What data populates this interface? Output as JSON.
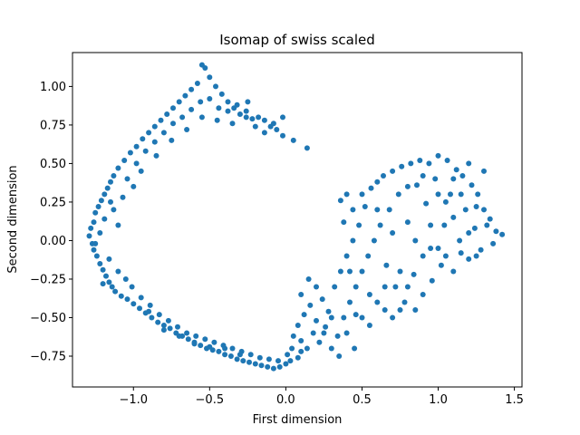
{
  "chart_data": {
    "type": "scatter",
    "title": "Isomap of swiss scaled",
    "xlabel": "First dimension",
    "ylabel": "Second dimension",
    "xlim": [
      -1.4,
      1.55
    ],
    "ylim": [
      -0.95,
      1.22
    ],
    "xticks": [
      -1.0,
      -0.5,
      0.0,
      0.5,
      1.0,
      1.5
    ],
    "xtick_labels": [
      "−1.0",
      "−0.5",
      "0.0",
      "0.5",
      "1.0",
      "1.5"
    ],
    "yticks": [
      -0.75,
      -0.5,
      -0.25,
      0.0,
      0.25,
      0.5,
      0.75,
      1.0
    ],
    "ytick_labels": [
      "−0.75",
      "−0.50",
      "−0.25",
      "0.00",
      "0.25",
      "0.50",
      "0.75",
      "1.00"
    ],
    "grid": false,
    "marker_color": "#1f77b4",
    "series": [
      {
        "points": [
          [
            -1.29,
            0.03
          ],
          [
            -1.28,
            0.08
          ],
          [
            -1.27,
            -0.02
          ],
          [
            -1.26,
            0.12
          ],
          [
            -1.26,
            -0.06
          ],
          [
            -1.25,
            0.18
          ],
          [
            -1.24,
            -0.1
          ],
          [
            -1.23,
            0.22
          ],
          [
            -1.22,
            -0.15
          ],
          [
            -1.21,
            0.26
          ],
          [
            -1.2,
            -0.19
          ],
          [
            -1.19,
            0.3
          ],
          [
            -1.18,
            -0.23
          ],
          [
            -1.17,
            0.34
          ],
          [
            -1.16,
            -0.27
          ],
          [
            -1.15,
            0.38
          ],
          [
            -1.14,
            -0.3
          ],
          [
            -1.13,
            0.42
          ],
          [
            -1.12,
            -0.33
          ],
          [
            -1.1,
            0.47
          ],
          [
            -1.08,
            -0.36
          ],
          [
            -1.06,
            0.52
          ],
          [
            -1.04,
            -0.38
          ],
          [
            -1.02,
            0.57
          ],
          [
            -1.0,
            -0.41
          ],
          [
            -0.98,
            0.61
          ],
          [
            -0.96,
            -0.44
          ],
          [
            -0.94,
            0.66
          ],
          [
            -0.92,
            -0.47
          ],
          [
            -0.9,
            0.7
          ],
          [
            -0.88,
            -0.5
          ],
          [
            -0.86,
            0.74
          ],
          [
            -0.84,
            -0.53
          ],
          [
            -0.82,
            0.78
          ],
          [
            -0.8,
            -0.55
          ],
          [
            -0.78,
            0.82
          ],
          [
            -0.76,
            -0.57
          ],
          [
            -0.74,
            0.86
          ],
          [
            -0.72,
            -0.6
          ],
          [
            -0.7,
            0.9
          ],
          [
            -0.68,
            -0.62
          ],
          [
            -0.66,
            0.94
          ],
          [
            -0.64,
            -0.64
          ],
          [
            -0.62,
            0.98
          ],
          [
            -0.6,
            -0.66
          ],
          [
            -0.58,
            1.02
          ],
          [
            -0.56,
            -0.68
          ],
          [
            -0.55,
            1.14
          ],
          [
            -0.53,
            1.12
          ],
          [
            -0.52,
            -0.7
          ],
          [
            -0.5,
            1.06
          ],
          [
            -0.48,
            -0.71
          ],
          [
            -0.46,
            1.0
          ],
          [
            -0.44,
            -0.72
          ],
          [
            -0.42,
            0.95
          ],
          [
            -0.4,
            -0.74
          ],
          [
            -0.38,
            0.9
          ],
          [
            -0.36,
            -0.75
          ],
          [
            -0.34,
            0.86
          ],
          [
            -0.32,
            -0.77
          ],
          [
            -0.3,
            0.82
          ],
          [
            -0.28,
            -0.78
          ],
          [
            -0.26,
            0.8
          ],
          [
            -0.24,
            -0.79
          ],
          [
            -0.22,
            0.79
          ],
          [
            -0.2,
            -0.8
          ],
          [
            -0.18,
            0.8
          ],
          [
            -0.16,
            -0.81
          ],
          [
            -0.14,
            0.78
          ],
          [
            -0.12,
            -0.82
          ],
          [
            -0.1,
            0.74
          ],
          [
            -0.08,
            -0.83
          ],
          [
            -0.06,
            0.72
          ],
          [
            -0.04,
            -0.82
          ],
          [
            -0.02,
            0.68
          ],
          [
            0.0,
            -0.8
          ],
          [
            0.03,
            -0.78
          ],
          [
            0.05,
            0.65
          ],
          [
            0.08,
            -0.76
          ],
          [
            0.1,
            -0.72
          ],
          [
            0.14,
            0.6
          ],
          [
            -1.25,
            -0.02
          ],
          [
            -1.22,
            0.05
          ],
          [
            -1.19,
            0.14
          ],
          [
            -1.16,
            -0.12
          ],
          [
            -1.13,
            0.2
          ],
          [
            -1.1,
            -0.2
          ],
          [
            -1.07,
            0.28
          ],
          [
            -1.04,
            0.4
          ],
          [
            -1.01,
            -0.3
          ],
          [
            -0.98,
            0.5
          ],
          [
            -0.95,
            -0.37
          ],
          [
            -0.92,
            0.58
          ],
          [
            -0.89,
            -0.42
          ],
          [
            -0.86,
            0.64
          ],
          [
            -0.83,
            -0.48
          ],
          [
            -0.8,
            0.7
          ],
          [
            -0.77,
            -0.52
          ],
          [
            -0.74,
            0.76
          ],
          [
            -0.71,
            -0.56
          ],
          [
            -0.68,
            0.8
          ],
          [
            -0.65,
            -0.6
          ],
          [
            -0.62,
            0.85
          ],
          [
            -0.59,
            -0.62
          ],
          [
            -0.56,
            0.9
          ],
          [
            -0.53,
            -0.64
          ],
          [
            -0.5,
            0.92
          ],
          [
            -0.47,
            -0.66
          ],
          [
            -0.44,
            0.86
          ],
          [
            -0.41,
            -0.68
          ],
          [
            -0.38,
            0.84
          ],
          [
            -0.35,
            -0.7
          ],
          [
            -0.32,
            0.88
          ],
          [
            -0.29,
            -0.72
          ],
          [
            -0.26,
            0.84
          ],
          [
            -0.23,
            -0.74
          ],
          [
            -0.2,
            0.74
          ],
          [
            -0.17,
            -0.76
          ],
          [
            -0.14,
            0.7
          ],
          [
            -0.11,
            -0.77
          ],
          [
            -0.08,
            0.76
          ],
          [
            -0.05,
            -0.78
          ],
          [
            -0.02,
            0.8
          ],
          [
            0.01,
            -0.74
          ],
          [
            0.04,
            -0.7
          ],
          [
            -1.2,
            -0.28
          ],
          [
            -1.15,
            0.25
          ],
          [
            -1.1,
            0.1
          ],
          [
            -1.05,
            -0.25
          ],
          [
            -1.0,
            0.35
          ],
          [
            -0.95,
            0.45
          ],
          [
            -0.9,
            -0.46
          ],
          [
            -0.85,
            0.55
          ],
          [
            -0.8,
            -0.58
          ],
          [
            -0.75,
            0.65
          ],
          [
            -0.7,
            -0.62
          ],
          [
            -0.65,
            0.72
          ],
          [
            -0.6,
            -0.67
          ],
          [
            -0.55,
            0.8
          ],
          [
            -0.5,
            -0.69
          ],
          [
            -0.45,
            0.78
          ],
          [
            -0.4,
            -0.7
          ],
          [
            -0.35,
            0.76
          ],
          [
            -0.3,
            -0.74
          ],
          [
            -0.25,
            0.9
          ],
          [
            0.05,
            -0.62
          ],
          [
            0.08,
            -0.55
          ],
          [
            0.1,
            -0.65
          ],
          [
            0.12,
            -0.48
          ],
          [
            0.14,
            -0.7
          ],
          [
            0.16,
            -0.42
          ],
          [
            0.18,
            -0.6
          ],
          [
            0.2,
            -0.52
          ],
          [
            0.22,
            -0.66
          ],
          [
            0.24,
            -0.38
          ],
          [
            0.26,
            -0.56
          ],
          [
            0.28,
            -0.46
          ],
          [
            0.3,
            -0.7
          ],
          [
            0.32,
            -0.3
          ],
          [
            0.34,
            -0.62
          ],
          [
            0.36,
            -0.2
          ],
          [
            0.38,
            -0.5
          ],
          [
            0.4,
            -0.1
          ],
          [
            0.42,
            -0.4
          ],
          [
            0.44,
            0.0
          ],
          [
            0.46,
            -0.3
          ],
          [
            0.48,
            0.1
          ],
          [
            0.5,
            -0.2
          ],
          [
            0.52,
            0.22
          ],
          [
            0.54,
            -0.1
          ],
          [
            0.56,
            0.34
          ],
          [
            0.58,
            0.0
          ],
          [
            0.6,
            0.38
          ],
          [
            0.62,
            0.1
          ],
          [
            0.64,
            0.42
          ],
          [
            0.66,
            -0.16
          ],
          [
            0.68,
            0.2
          ],
          [
            0.7,
            0.45
          ],
          [
            0.72,
            -0.3
          ],
          [
            0.74,
            0.3
          ],
          [
            0.76,
            0.48
          ],
          [
            0.78,
            -0.4
          ],
          [
            0.8,
            0.12
          ],
          [
            0.82,
            0.5
          ],
          [
            0.84,
            -0.22
          ],
          [
            0.86,
            0.36
          ],
          [
            0.88,
            0.52
          ],
          [
            0.9,
            -0.1
          ],
          [
            0.92,
            0.24
          ],
          [
            0.94,
            0.5
          ],
          [
            0.96,
            -0.26
          ],
          [
            0.98,
            0.4
          ],
          [
            1.0,
            0.55
          ],
          [
            1.02,
            -0.16
          ],
          [
            1.04,
            0.1
          ],
          [
            1.06,
            0.52
          ],
          [
            1.08,
            0.3
          ],
          [
            1.1,
            -0.2
          ],
          [
            1.12,
            0.46
          ],
          [
            1.14,
            0.0
          ],
          [
            1.16,
            0.42
          ],
          [
            1.18,
            0.2
          ],
          [
            1.2,
            -0.12
          ],
          [
            1.22,
            0.36
          ],
          [
            1.24,
            0.08
          ],
          [
            1.26,
            0.3
          ],
          [
            1.28,
            -0.06
          ],
          [
            1.3,
            0.2
          ],
          [
            1.32,
            0.1
          ],
          [
            1.34,
            0.14
          ],
          [
            1.36,
            -0.02
          ],
          [
            1.38,
            0.06
          ],
          [
            1.42,
            0.04
          ],
          [
            0.36,
            0.26
          ],
          [
            0.38,
            0.12
          ],
          [
            0.4,
            0.3
          ],
          [
            0.42,
            -0.2
          ],
          [
            0.44,
            0.2
          ],
          [
            0.46,
            -0.48
          ],
          [
            0.5,
            0.3
          ],
          [
            0.55,
            -0.35
          ],
          [
            0.6,
            0.2
          ],
          [
            0.65,
            -0.45
          ],
          [
            0.7,
            0.05
          ],
          [
            0.75,
            -0.2
          ],
          [
            0.8,
            0.35
          ],
          [
            0.85,
            0.0
          ],
          [
            0.9,
            0.42
          ],
          [
            0.95,
            0.1
          ],
          [
            1.0,
            -0.05
          ],
          [
            1.05,
            0.25
          ],
          [
            1.1,
            0.4
          ],
          [
            1.15,
            -0.08
          ],
          [
            1.2,
            0.5
          ],
          [
            1.25,
            0.22
          ],
          [
            1.3,
            0.45
          ],
          [
            0.1,
            -0.35
          ],
          [
            0.15,
            -0.25
          ],
          [
            0.2,
            -0.3
          ],
          [
            0.25,
            -0.6
          ],
          [
            0.3,
            -0.5
          ],
          [
            0.35,
            -0.75
          ],
          [
            0.4,
            -0.6
          ],
          [
            0.45,
            -0.7
          ],
          [
            0.5,
            -0.5
          ],
          [
            0.55,
            -0.55
          ],
          [
            0.6,
            -0.4
          ],
          [
            0.65,
            -0.3
          ],
          [
            0.7,
            -0.5
          ],
          [
            0.75,
            -0.45
          ],
          [
            0.8,
            -0.3
          ],
          [
            0.85,
            -0.45
          ],
          [
            0.9,
            -0.35
          ],
          [
            0.95,
            -0.05
          ],
          [
            1.0,
            0.3
          ],
          [
            1.05,
            -0.1
          ],
          [
            1.1,
            0.15
          ],
          [
            1.15,
            0.3
          ],
          [
            1.2,
            0.05
          ],
          [
            1.25,
            -0.1
          ]
        ]
      }
    ]
  }
}
